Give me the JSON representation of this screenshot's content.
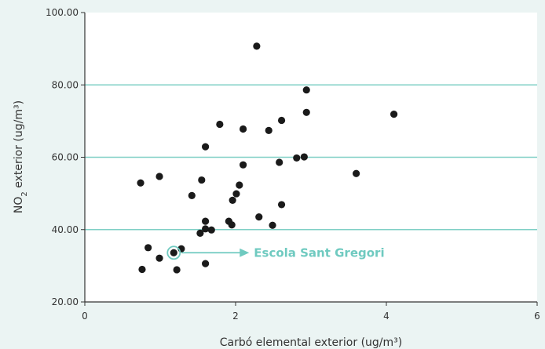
{
  "colors": {
    "background": "#ebf4f3",
    "plot_background": "#ffffff",
    "gridline": "#7fcfc6",
    "axis": "#333333",
    "point": "#1a1a1a",
    "annotation": "#6fcac0"
  },
  "chart_data": {
    "type": "scatter",
    "xlabel": "Carbó elemental exterior (ug/m³)",
    "ylabel_main": "NO",
    "ylabel_sub": "2",
    "ylabel_rest": " exterior (ug/m³)",
    "xlim": [
      0,
      6
    ],
    "ylim": [
      20,
      100
    ],
    "x_ticks": [
      0,
      2,
      4,
      6
    ],
    "x_tick_labels": [
      "0",
      "2",
      "4",
      "6"
    ],
    "y_ticks": [
      20,
      40,
      60,
      80,
      100
    ],
    "y_tick_labels": [
      "20.00",
      "40.00",
      "60.00",
      "80.00",
      "100.00"
    ],
    "grid": "horizontal",
    "points": [
      {
        "x": 2.28,
        "y": 90.7
      },
      {
        "x": 2.94,
        "y": 78.6
      },
      {
        "x": 4.1,
        "y": 71.9
      },
      {
        "x": 2.94,
        "y": 72.4
      },
      {
        "x": 2.61,
        "y": 70.2
      },
      {
        "x": 1.79,
        "y": 69.1
      },
      {
        "x": 2.1,
        "y": 67.8
      },
      {
        "x": 2.44,
        "y": 67.4
      },
      {
        "x": 1.6,
        "y": 62.9
      },
      {
        "x": 2.81,
        "y": 59.8
      },
      {
        "x": 2.91,
        "y": 60.1
      },
      {
        "x": 2.58,
        "y": 58.6
      },
      {
        "x": 2.1,
        "y": 57.9
      },
      {
        "x": 3.6,
        "y": 55.5
      },
      {
        "x": 0.99,
        "y": 54.7
      },
      {
        "x": 1.55,
        "y": 53.7
      },
      {
        "x": 0.74,
        "y": 52.9
      },
      {
        "x": 2.05,
        "y": 52.3
      },
      {
        "x": 2.01,
        "y": 49.9
      },
      {
        "x": 1.42,
        "y": 49.4
      },
      {
        "x": 1.96,
        "y": 48.1
      },
      {
        "x": 2.61,
        "y": 46.9
      },
      {
        "x": 2.31,
        "y": 43.5
      },
      {
        "x": 1.6,
        "y": 42.3
      },
      {
        "x": 1.91,
        "y": 42.3
      },
      {
        "x": 1.95,
        "y": 41.3
      },
      {
        "x": 2.49,
        "y": 41.2
      },
      {
        "x": 1.6,
        "y": 40.2
      },
      {
        "x": 1.68,
        "y": 39.9
      },
      {
        "x": 1.53,
        "y": 39.0
      },
      {
        "x": 0.84,
        "y": 35.0
      },
      {
        "x": 1.28,
        "y": 34.7
      },
      {
        "x": 1.18,
        "y": 33.6
      },
      {
        "x": 0.99,
        "y": 32.1
      },
      {
        "x": 1.6,
        "y": 30.6
      },
      {
        "x": 0.76,
        "y": 29.0
      },
      {
        "x": 1.22,
        "y": 28.9
      }
    ],
    "highlight": {
      "x": 1.18,
      "y": 33.6,
      "label": "Escola Sant Gregori"
    }
  }
}
